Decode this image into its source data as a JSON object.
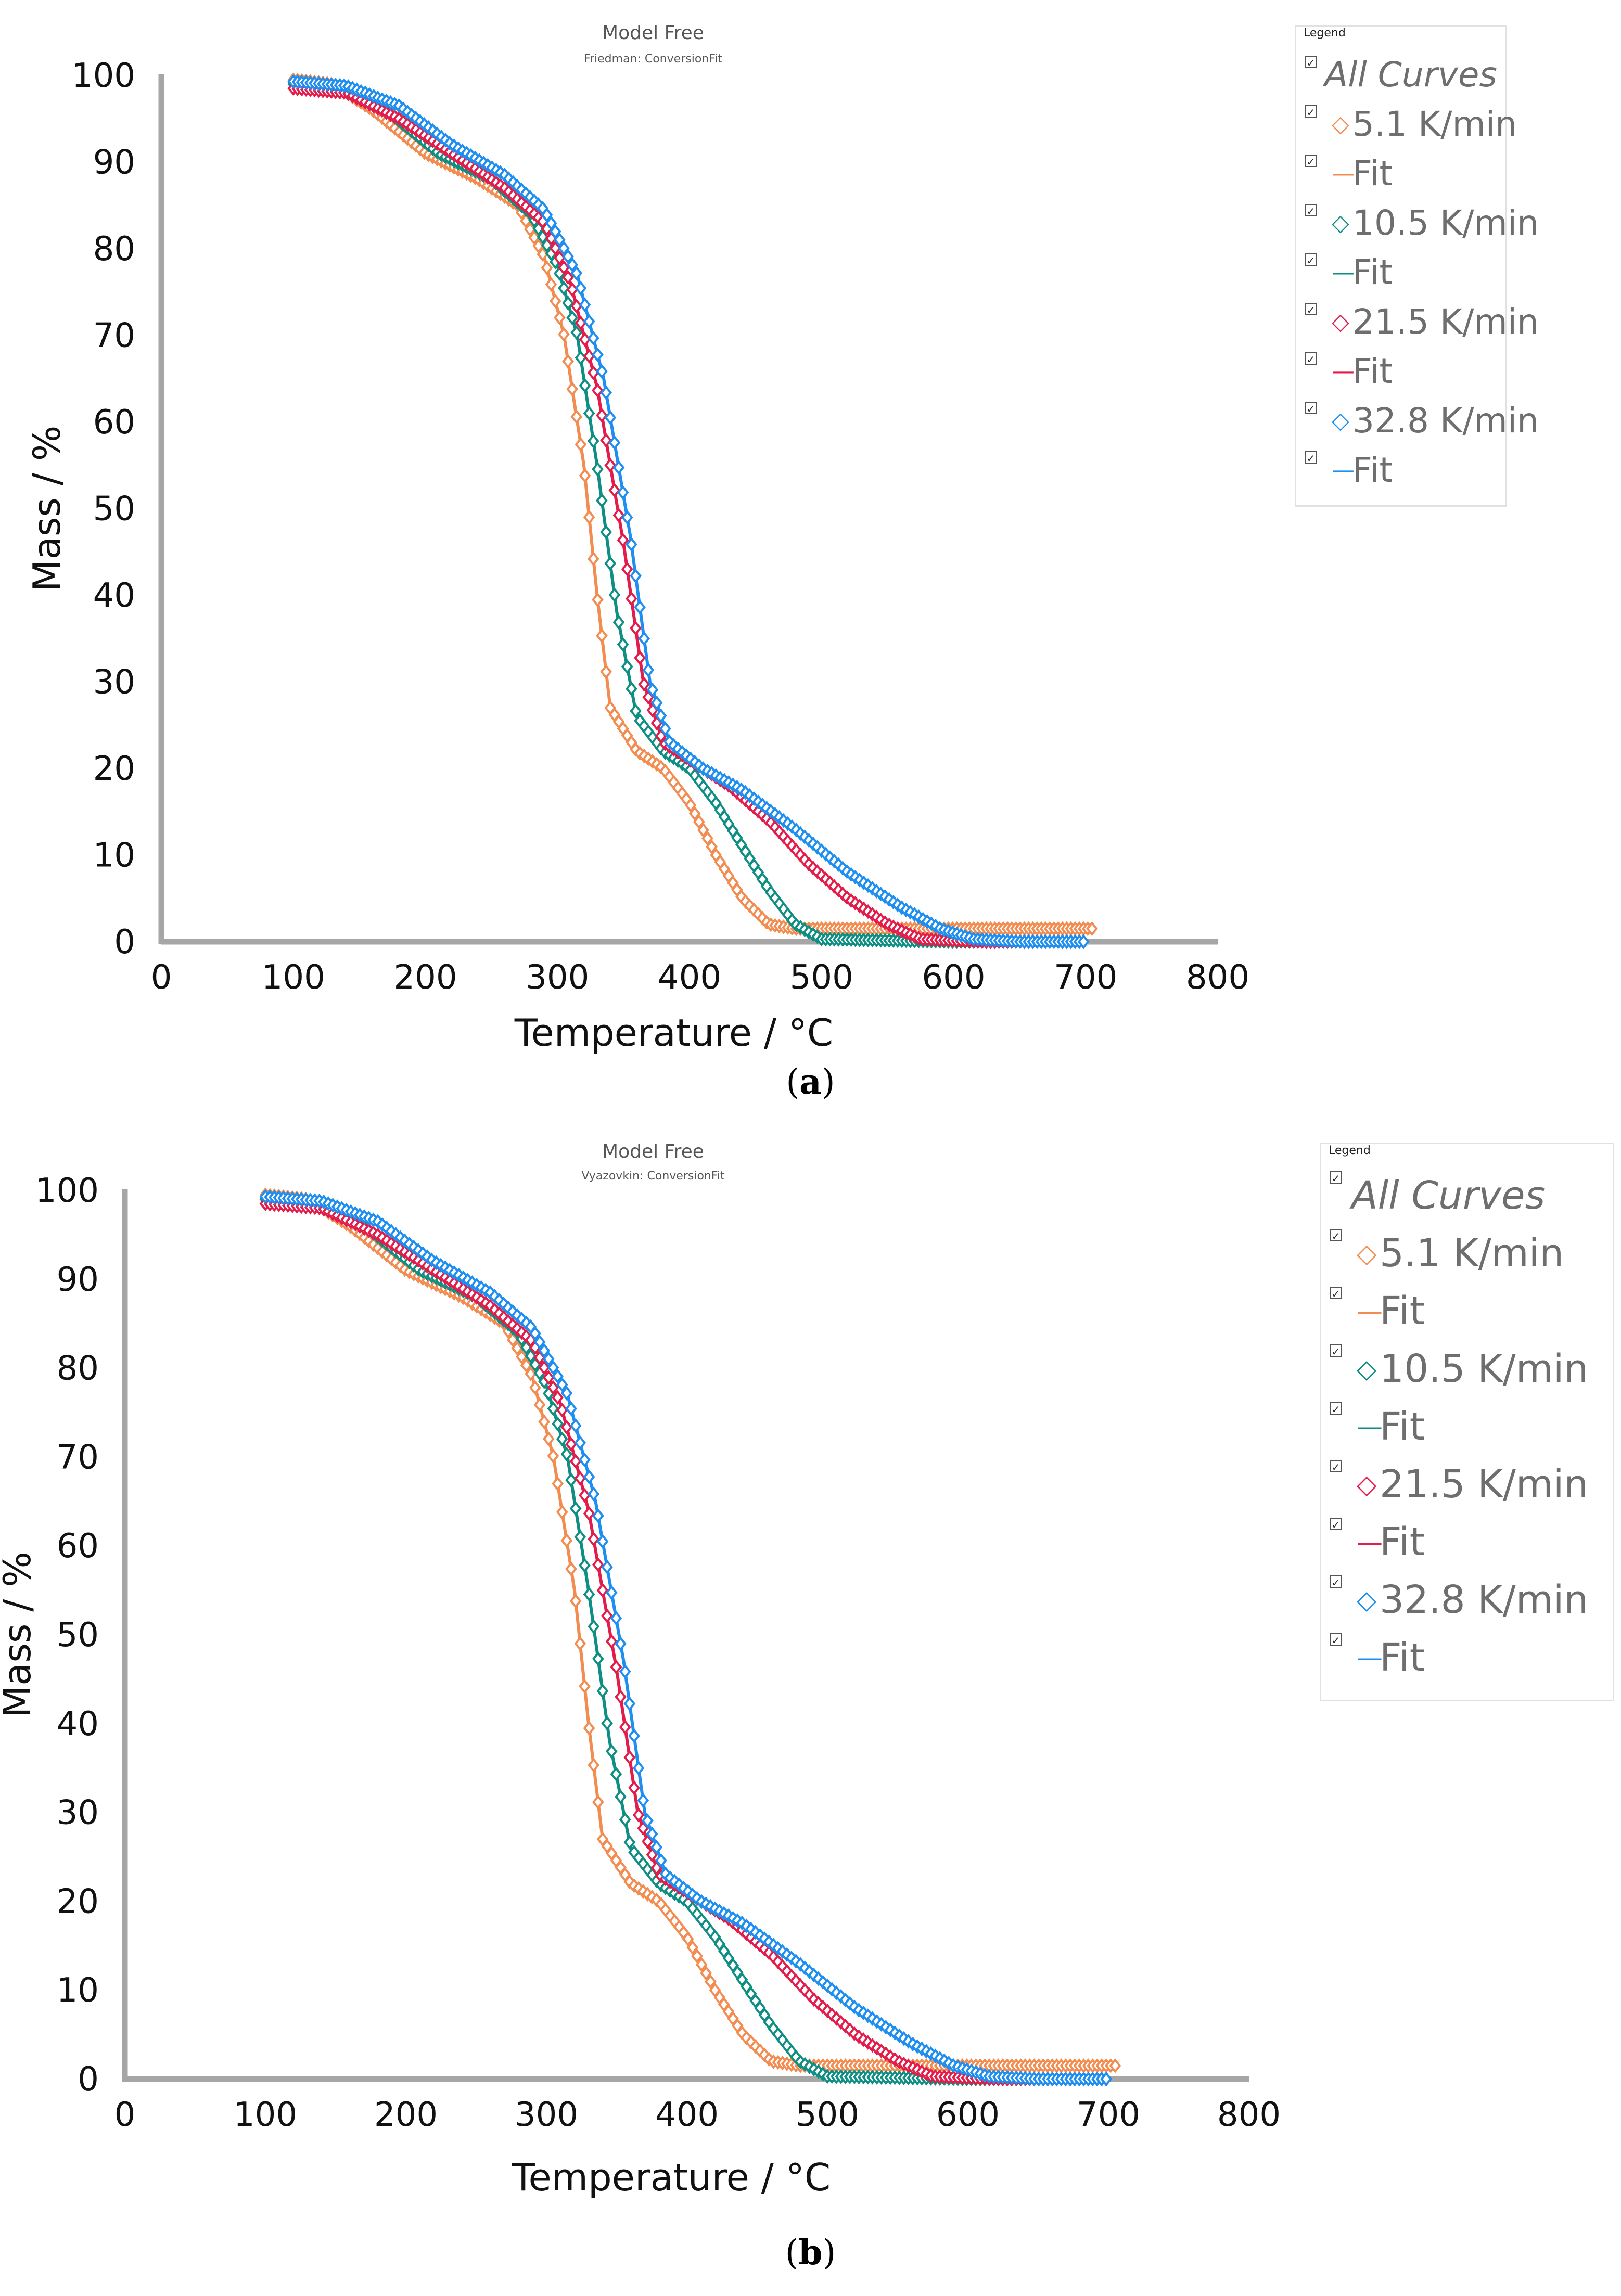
{
  "chart_data": [
    {
      "panel": "a",
      "caption_letter": "a",
      "type": "scatter",
      "title": "Model Free",
      "subtitle": "Friedman: ConversionFit",
      "xlabel": "Temperature / °C",
      "ylabel": "Mass / %",
      "xlim": [
        0,
        800
      ],
      "ylim": [
        0,
        100
      ],
      "xticks": [
        "0",
        "100",
        "200",
        "300",
        "400",
        "500",
        "600",
        "700",
        "800"
      ],
      "yticks": [
        "0",
        "10",
        "20",
        "30",
        "40",
        "50",
        "60",
        "70",
        "80",
        "90",
        "100"
      ],
      "legend": {
        "title": "Legend",
        "all_label": "All Curves",
        "items": [
          {
            "label": "5.1 K/min",
            "kind": "marker",
            "color": "#f28c50"
          },
          {
            "label": "Fit",
            "kind": "line",
            "color": "#f28c50"
          },
          {
            "label": "10.5 K/min",
            "kind": "marker",
            "color": "#0f8f84"
          },
          {
            "label": "Fit",
            "kind": "line",
            "color": "#0f8f84"
          },
          {
            "label": "21.5 K/min",
            "kind": "marker",
            "color": "#e31d4b"
          },
          {
            "label": "Fit",
            "kind": "line",
            "color": "#e31d4b"
          },
          {
            "label": "32.8 K/min",
            "kind": "marker",
            "color": "#1e8ff0"
          },
          {
            "label": "Fit",
            "kind": "line",
            "color": "#1e8ff0"
          }
        ]
      },
      "series": [
        {
          "name": "5.1 K/min",
          "color": "#f28c50",
          "points": [
            [
              100,
              99.5
            ],
            [
              130,
              99
            ],
            [
              160,
              96
            ],
            [
              200,
              91
            ],
            [
              240,
              88
            ],
            [
              270,
              85
            ],
            [
              290,
              79
            ],
            [
              305,
              70
            ],
            [
              320,
              55
            ],
            [
              330,
              40
            ],
            [
              340,
              27
            ],
            [
              360,
              22
            ],
            [
              380,
              20
            ],
            [
              400,
              16
            ],
            [
              420,
              10
            ],
            [
              440,
              5
            ],
            [
              460,
              2
            ],
            [
              480,
              1.5
            ],
            [
              550,
              1.5
            ],
            [
              650,
              1.5
            ],
            [
              705,
              1.5
            ]
          ]
        },
        {
          "name": "10.5 K/min",
          "color": "#0f8f84",
          "points": [
            [
              100,
              99
            ],
            [
              140,
              98.5
            ],
            [
              170,
              96
            ],
            [
              210,
              91
            ],
            [
              250,
              88
            ],
            [
              280,
              84
            ],
            [
              300,
              78
            ],
            [
              315,
              70
            ],
            [
              330,
              55
            ],
            [
              345,
              38
            ],
            [
              360,
              26
            ],
            [
              380,
              22
            ],
            [
              400,
              20
            ],
            [
              420,
              16
            ],
            [
              440,
              11
            ],
            [
              460,
              6
            ],
            [
              480,
              2
            ],
            [
              500,
              0.3
            ],
            [
              600,
              0
            ],
            [
              700,
              0
            ]
          ]
        },
        {
          "name": "21.5 K/min",
          "color": "#e31d4b",
          "points": [
            [
              100,
              98.5
            ],
            [
              140,
              98
            ],
            [
              180,
              95
            ],
            [
              220,
              91
            ],
            [
              260,
              87
            ],
            [
              290,
              83
            ],
            [
              310,
              76
            ],
            [
              330,
              64
            ],
            [
              350,
              46
            ],
            [
              365,
              30
            ],
            [
              380,
              23
            ],
            [
              400,
              21
            ],
            [
              430,
              18
            ],
            [
              460,
              14
            ],
            [
              490,
              9
            ],
            [
              520,
              5
            ],
            [
              550,
              2
            ],
            [
              575,
              0.3
            ],
            [
              620,
              0
            ],
            [
              700,
              0
            ]
          ]
        },
        {
          "name": "32.8 K/min",
          "color": "#1e8ff0",
          "points": [
            [
              100,
              99.3
            ],
            [
              140,
              98.8
            ],
            [
              180,
              96.5
            ],
            [
              220,
              92
            ],
            [
              260,
              88.5
            ],
            [
              290,
              84.5
            ],
            [
              315,
              77
            ],
            [
              335,
              65
            ],
            [
              355,
              47
            ],
            [
              370,
              30
            ],
            [
              385,
              23
            ],
            [
              410,
              20
            ],
            [
              440,
              17.5
            ],
            [
              480,
              13
            ],
            [
              520,
              8
            ],
            [
              560,
              4
            ],
            [
              590,
              1.5
            ],
            [
              615,
              0.3
            ],
            [
              650,
              0
            ],
            [
              700,
              0
            ]
          ]
        }
      ]
    },
    {
      "panel": "b",
      "caption_letter": "b",
      "type": "scatter",
      "title": "Model Free",
      "subtitle": "Vyazovkin: ConversionFit",
      "xlabel": "Temperature / °C",
      "ylabel": "Mass / %",
      "xlim": [
        0,
        800
      ],
      "ylim": [
        0,
        100
      ],
      "xticks": [
        "0",
        "100",
        "200",
        "300",
        "400",
        "500",
        "600",
        "700",
        "800"
      ],
      "yticks": [
        "0",
        "10",
        "20",
        "30",
        "40",
        "50",
        "60",
        "70",
        "80",
        "90",
        "100"
      ],
      "legend": {
        "title": "Legend",
        "all_label": "All Curves",
        "items": [
          {
            "label": "5.1 K/min",
            "kind": "marker",
            "color": "#f28c50"
          },
          {
            "label": "Fit",
            "kind": "line",
            "color": "#f28c50"
          },
          {
            "label": "10.5 K/min",
            "kind": "marker",
            "color": "#0f8f84"
          },
          {
            "label": "Fit",
            "kind": "line",
            "color": "#0f8f84"
          },
          {
            "label": "21.5 K/min",
            "kind": "marker",
            "color": "#e31d4b"
          },
          {
            "label": "Fit",
            "kind": "line",
            "color": "#e31d4b"
          },
          {
            "label": "32.8 K/min",
            "kind": "marker",
            "color": "#1e8ff0"
          },
          {
            "label": "Fit",
            "kind": "line",
            "color": "#1e8ff0"
          }
        ]
      },
      "series": [
        {
          "name": "5.1 K/min",
          "color": "#f28c50",
          "points": [
            [
              100,
              99.5
            ],
            [
              130,
              99
            ],
            [
              160,
              96
            ],
            [
              200,
              91
            ],
            [
              240,
              88
            ],
            [
              270,
              85
            ],
            [
              290,
              79
            ],
            [
              305,
              70
            ],
            [
              320,
              55
            ],
            [
              330,
              40
            ],
            [
              340,
              27
            ],
            [
              360,
              22
            ],
            [
              380,
              20
            ],
            [
              400,
              16
            ],
            [
              420,
              10
            ],
            [
              440,
              5
            ],
            [
              460,
              2
            ],
            [
              480,
              1.5
            ],
            [
              550,
              1.5
            ],
            [
              650,
              1.5
            ],
            [
              705,
              1.5
            ]
          ]
        },
        {
          "name": "10.5 K/min",
          "color": "#0f8f84",
          "points": [
            [
              100,
              99
            ],
            [
              140,
              98.5
            ],
            [
              170,
              96
            ],
            [
              210,
              91
            ],
            [
              250,
              88
            ],
            [
              280,
              84
            ],
            [
              300,
              78
            ],
            [
              315,
              70
            ],
            [
              330,
              55
            ],
            [
              345,
              38
            ],
            [
              360,
              26
            ],
            [
              380,
              22
            ],
            [
              400,
              20
            ],
            [
              420,
              16
            ],
            [
              440,
              11
            ],
            [
              460,
              6
            ],
            [
              480,
              2
            ],
            [
              500,
              0.3
            ],
            [
              600,
              0
            ],
            [
              700,
              0
            ]
          ]
        },
        {
          "name": "21.5 K/min",
          "color": "#e31d4b",
          "points": [
            [
              100,
              98.5
            ],
            [
              140,
              98
            ],
            [
              180,
              95
            ],
            [
              220,
              91
            ],
            [
              260,
              87
            ],
            [
              290,
              83
            ],
            [
              310,
              76
            ],
            [
              330,
              64
            ],
            [
              350,
              46
            ],
            [
              365,
              30
            ],
            [
              380,
              23
            ],
            [
              400,
              21
            ],
            [
              430,
              18
            ],
            [
              460,
              14
            ],
            [
              490,
              9
            ],
            [
              520,
              5
            ],
            [
              550,
              2
            ],
            [
              575,
              0.3
            ],
            [
              620,
              0
            ],
            [
              700,
              0
            ]
          ]
        },
        {
          "name": "32.8 K/min",
          "color": "#1e8ff0",
          "points": [
            [
              100,
              99.3
            ],
            [
              140,
              98.8
            ],
            [
              180,
              96.5
            ],
            [
              220,
              92
            ],
            [
              260,
              88.5
            ],
            [
              290,
              84.5
            ],
            [
              315,
              77
            ],
            [
              335,
              65
            ],
            [
              355,
              47
            ],
            [
              370,
              30
            ],
            [
              385,
              23
            ],
            [
              410,
              20
            ],
            [
              440,
              17.5
            ],
            [
              480,
              13
            ],
            [
              520,
              8
            ],
            [
              560,
              4
            ],
            [
              590,
              1.5
            ],
            [
              615,
              0.3
            ],
            [
              650,
              0
            ],
            [
              700,
              0
            ]
          ]
        }
      ]
    }
  ]
}
